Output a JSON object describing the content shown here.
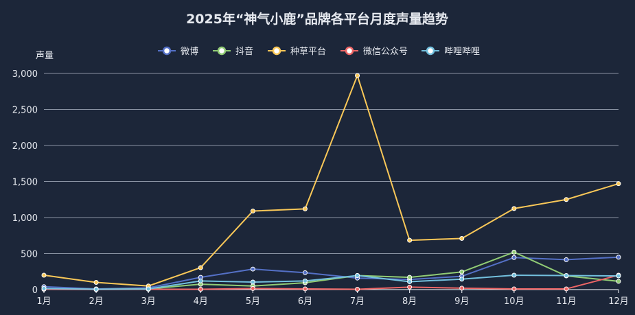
{
  "chart_data": {
    "type": "line",
    "title": "2025年“神气小鹿”品牌各平台月度声量趋势",
    "ylabel": "声量",
    "categories": [
      "1月",
      "2月",
      "3月",
      "4月",
      "5月",
      "6月",
      "7月",
      "8月",
      "9月",
      "10月",
      "11月",
      "12月"
    ],
    "ylim": [
      0,
      3000
    ],
    "yticks": [
      0,
      500,
      1000,
      1500,
      2000,
      2500,
      3000
    ],
    "ytick_labels": [
      "0",
      "500",
      "1,000",
      "1,500",
      "2,000",
      "2,500",
      "3,000"
    ],
    "grid": true,
    "legend_position": "top-center",
    "series": [
      {
        "name": "微博",
        "color": "#5470c6",
        "values": [
          40,
          10,
          25,
          170,
          285,
          235,
          160,
          140,
          185,
          445,
          415,
          450
        ]
      },
      {
        "name": "抖音",
        "color": "#91cc75",
        "values": [
          10,
          5,
          10,
          75,
          50,
          95,
          195,
          170,
          245,
          520,
          190,
          115
        ]
      },
      {
        "name": "种草平台",
        "color": "#fac858",
        "values": [
          200,
          100,
          50,
          305,
          1090,
          1120,
          2970,
          685,
          710,
          1125,
          1250,
          1470
        ]
      },
      {
        "name": "微信公众号",
        "color": "#ee6666",
        "values": [
          5,
          0,
          5,
          5,
          15,
          10,
          5,
          35,
          20,
          10,
          10,
          200
        ]
      },
      {
        "name": "哔哩哔哩",
        "color": "#73c0de",
        "values": [
          15,
          5,
          10,
          120,
          105,
          120,
          195,
          110,
          145,
          200,
          195,
          190
        ]
      }
    ]
  }
}
